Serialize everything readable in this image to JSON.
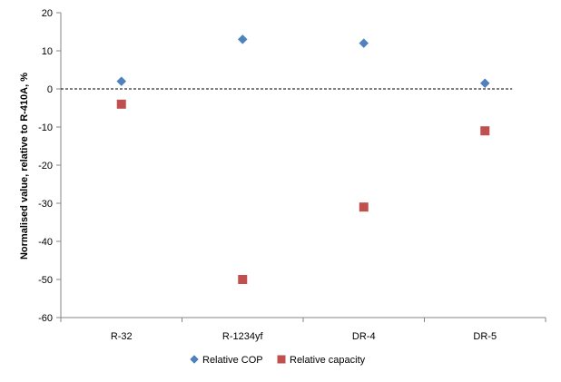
{
  "chart_data": {
    "type": "scatter",
    "title": "",
    "xlabel": "",
    "ylabel": "Normalised value, relative to R-410A, %",
    "categories": [
      "R-32",
      "R-1234yf",
      "DR-4",
      "DR-5"
    ],
    "ylim": [
      -60,
      20
    ],
    "yticks": [
      20,
      10,
      0,
      -10,
      -20,
      -30,
      -40,
      -50,
      -60
    ],
    "ytick_labels": [
      "20",
      "10",
      "0",
      "-10",
      "-20",
      "-30",
      "-40",
      "-50",
      "-60"
    ],
    "reference_line": {
      "y": 0,
      "style": "dashed"
    },
    "legend_position": "bottom",
    "series": [
      {
        "name": "Relative COP",
        "marker": "diamond",
        "color": "#4F81BD",
        "values": [
          2,
          13,
          12,
          1.5
        ]
      },
      {
        "name": "Relative capacity",
        "marker": "square",
        "color": "#C0504D",
        "values": [
          -4,
          -50,
          -31,
          -11
        ]
      }
    ]
  }
}
